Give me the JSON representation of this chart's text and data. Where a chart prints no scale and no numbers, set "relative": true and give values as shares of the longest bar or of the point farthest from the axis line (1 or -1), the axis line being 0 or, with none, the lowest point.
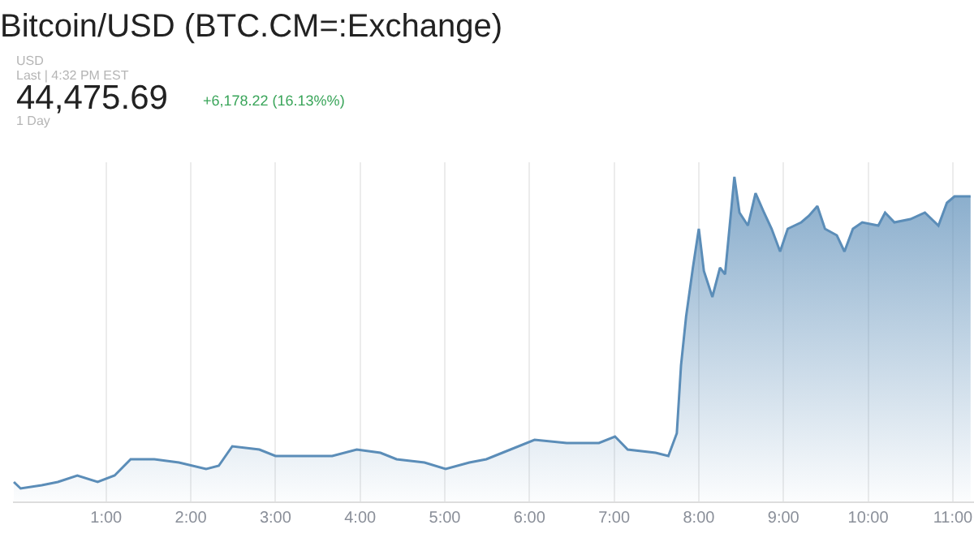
{
  "chart_data": {
    "type": "area",
    "title": "Bitcoin/USD (BTC.CM=:Exchange)",
    "annotations": [
      "USD",
      "Last | 4:32 PM EST",
      "44,475.69",
      "+6,178.22 (16.13%%)",
      "1 Day"
    ],
    "relative": true,
    "grid": "x",
    "legend": false,
    "marker": "none",
    "line_style": "solid",
    "xlim": [
      -0.1,
      11.25
    ],
    "xticks": [
      {
        "value": 1,
        "label": "1:00"
      },
      {
        "value": 2,
        "label": "2:00"
      },
      {
        "value": 3,
        "label": "3:00"
      },
      {
        "value": 4,
        "label": "4:00"
      },
      {
        "value": 5,
        "label": "5:00"
      },
      {
        "value": 6,
        "label": "6:00"
      },
      {
        "value": 7,
        "label": "7:00"
      },
      {
        "value": 8,
        "label": "8:00"
      },
      {
        "value": 9,
        "label": "9:00"
      },
      {
        "value": 10,
        "label": "10:00"
      },
      {
        "value": 11,
        "label": "11:00"
      }
    ],
    "x": [
      -0.09,
      -0.01,
      0.24,
      0.43,
      0.66,
      0.9,
      1.1,
      1.29,
      1.57,
      1.86,
      2.18,
      2.33,
      2.49,
      2.81,
      3.0,
      3.29,
      3.67,
      3.96,
      4.24,
      4.43,
      4.76,
      5.01,
      5.29,
      5.49,
      5.68,
      6.06,
      6.44,
      6.82,
      7.01,
      7.16,
      7.49,
      7.64,
      7.74,
      7.79,
      7.85,
      7.93,
      8.0,
      8.06,
      8.16,
      8.25,
      8.31,
      8.42,
      8.48,
      8.58,
      8.67,
      8.77,
      8.86,
      8.96,
      9.05,
      9.21,
      9.3,
      9.4,
      9.49,
      9.63,
      9.72,
      9.82,
      9.93,
      10.12,
      10.2,
      10.31,
      10.5,
      10.67,
      10.83,
      10.93,
      11.02,
      11.21
    ],
    "series": [
      {
        "color": "#5b8db8",
        "values": [
          0.06,
          0.04,
          0.05,
          0.06,
          0.08,
          0.06,
          0.08,
          0.13,
          0.13,
          0.12,
          0.1,
          0.11,
          0.17,
          0.16,
          0.14,
          0.14,
          0.14,
          0.16,
          0.15,
          0.13,
          0.12,
          0.1,
          0.12,
          0.13,
          0.15,
          0.19,
          0.18,
          0.18,
          0.2,
          0.16,
          0.15,
          0.14,
          0.21,
          0.42,
          0.57,
          0.72,
          0.84,
          0.71,
          0.63,
          0.72,
          0.7,
          1.0,
          0.89,
          0.85,
          0.95,
          0.89,
          0.84,
          0.77,
          0.84,
          0.86,
          0.88,
          0.91,
          0.84,
          0.82,
          0.77,
          0.84,
          0.86,
          0.85,
          0.89,
          0.86,
          0.87,
          0.89,
          0.85,
          0.92,
          0.94,
          0.94
        ]
      }
    ]
  }
}
